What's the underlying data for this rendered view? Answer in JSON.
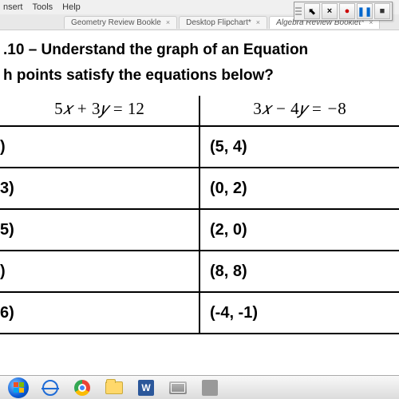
{
  "menu": {
    "items": [
      "nsert",
      "Tools",
      "Help"
    ]
  },
  "tabs": [
    {
      "label": "Geometry Review Bookle",
      "active": false
    },
    {
      "label": "Desktop Flipchart*",
      "active": false
    },
    {
      "label": "Algebra Review Booklet*",
      "active": true
    }
  ],
  "toolbar_buttons": [
    {
      "name": "cursor-button",
      "glyph": "⬉"
    },
    {
      "name": "close-x-button",
      "glyph": "×"
    },
    {
      "name": "record-button",
      "glyph": "●",
      "cls": "rec"
    },
    {
      "name": "pause-button",
      "glyph": "❚❚",
      "cls": "pause"
    },
    {
      "name": "stop-button",
      "glyph": "■",
      "cls": "stop"
    }
  ],
  "heading": ".10 – Understand the graph of an Equation",
  "subheading": "h points satisfy the equations below?",
  "columns": [
    {
      "equation_html": "5x + 3y = 12",
      "points": [
        ")",
        "3)",
        "5)",
        ")",
        "6)"
      ]
    },
    {
      "equation_html": "3x − 4y = −8",
      "points": [
        "(5, 4)",
        "(0, 2)",
        "(2, 0)",
        "(8, 8)",
        "(-4, -1)"
      ]
    }
  ],
  "word_icon_letter": "W"
}
